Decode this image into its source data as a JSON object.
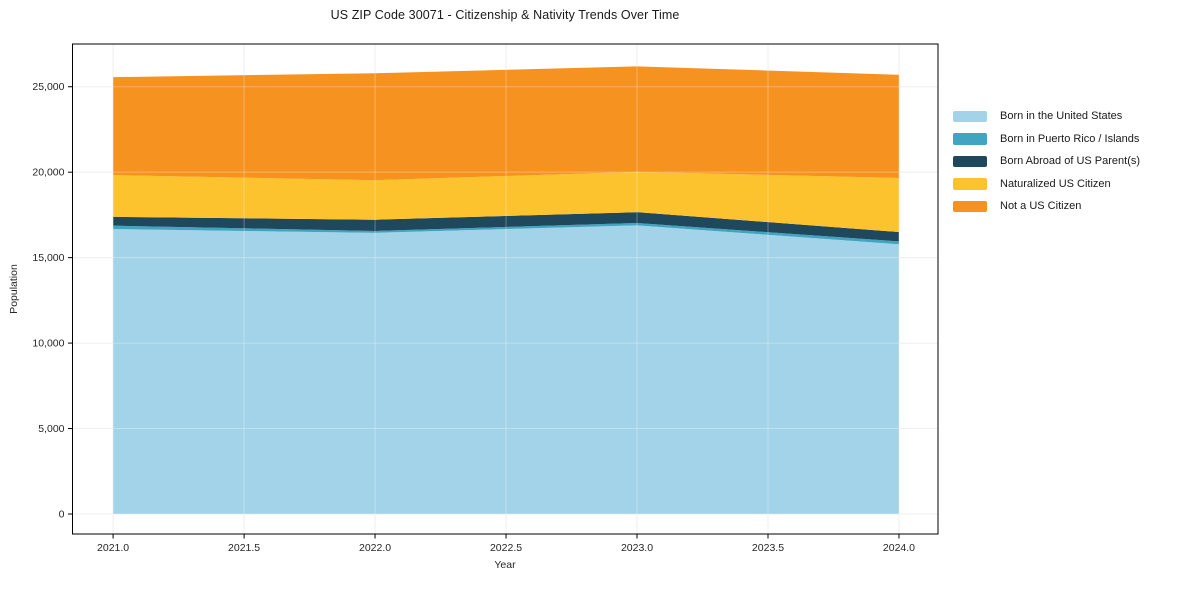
{
  "title": "US ZIP Code 30071 - Citizenship & Nativity Trends Over Time",
  "chart_data": {
    "type": "area",
    "stacked": true,
    "title": "US ZIP Code 30071 - Citizenship & Nativity Trends Over Time",
    "xlabel": "Year",
    "ylabel": "Population",
    "x": [
      2021,
      2022,
      2023,
      2024
    ],
    "series": [
      {
        "name": "Born in the United States",
        "color": "#a3d3e8",
        "values": [
          16670,
          16450,
          16890,
          15780
        ]
      },
      {
        "name": "Born in Puerto Rico / Islands",
        "color": "#41a4c0",
        "values": [
          200,
          110,
          140,
          170
        ]
      },
      {
        "name": "Born Abroad of US Parent(s)",
        "color": "#1f485c",
        "values": [
          520,
          660,
          630,
          550
        ]
      },
      {
        "name": "Naturalized US Citizen",
        "color": "#fdc32f",
        "values": [
          2440,
          2310,
          2360,
          3160
        ]
      },
      {
        "name": "Not a US Citizen",
        "color": "#f6921f",
        "values": [
          5730,
          6260,
          6170,
          6040
        ]
      }
    ],
    "totals": [
      25560,
      25790,
      26190,
      25700
    ],
    "xlim": [
      2020.845,
      2024.149
    ],
    "ylim": [
      -1170,
      27500
    ],
    "x_tick_values": [
      2021.0,
      2021.5,
      2022.0,
      2022.5,
      2023.0,
      2023.5,
      2024.0
    ],
    "x_tick_labels": [
      "2021.0",
      "2021.5",
      "2022.0",
      "2022.5",
      "2023.0",
      "2023.5",
      "2024.0"
    ],
    "y_tick_values": [
      0,
      5000,
      10000,
      15000,
      20000,
      25000
    ],
    "y_tick_labels": [
      "0",
      "5,000",
      "10,000",
      "15,000",
      "20,000",
      "25,000"
    ],
    "grid": true,
    "legend_position": "outside-right",
    "colors": {
      "grid": "#e8e8e8",
      "grid_over_area": "rgba(255,255,255,0.30)",
      "spine": "#000000",
      "tick_text": "#262626",
      "title_text": "#1a1a1a",
      "background": "#ffffff"
    }
  }
}
